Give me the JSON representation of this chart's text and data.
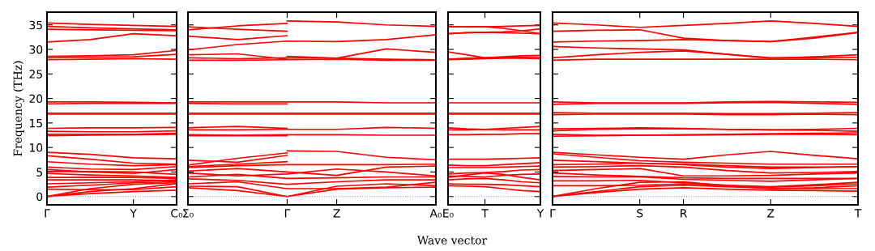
{
  "chart_data": [
    {
      "type": "line",
      "ylabel": "Frequency (THz)",
      "ylim": [
        -1.7,
        37.6
      ],
      "categories": [
        "Γ",
        null,
        "Y",
        "C₀"
      ],
      "yticks": [
        0,
        5,
        10,
        15,
        20,
        25,
        30,
        35
      ],
      "grid": false,
      "legend": false,
      "marker": "none",
      "line_style": "solid",
      "ref_lines": [
        {
          "axis": "y",
          "value": 0,
          "color": "#8888dd",
          "line_style": "dotted"
        }
      ],
      "series": [
        {
          "color": "#ff0000",
          "values": [
            35.4,
            35.1,
            34.9,
            34.7
          ]
        },
        {
          "color": "#ff0000",
          "values": [
            34.7,
            34.4,
            34.2,
            34.0
          ]
        },
        {
          "color": "#ff0000",
          "values": [
            34.1,
            34.0,
            33.9,
            33.8
          ]
        },
        {
          "color": "#ff0000",
          "values": [
            31.5,
            32.0,
            33.2,
            32.8
          ]
        },
        {
          "color": "#ff0000",
          "values": [
            28.6,
            28.7,
            28.9,
            29.8
          ]
        },
        {
          "color": "#ff0000",
          "values": [
            28.3,
            28.4,
            28.5,
            29.0
          ]
        },
        {
          "color": "#ff0000",
          "values": [
            27.9,
            28.0,
            28.1,
            28.0
          ]
        },
        {
          "color": "#ff0000",
          "values": [
            19.3,
            19.3,
            19.2,
            19.1
          ]
        },
        {
          "color": "#ff0000",
          "values": [
            18.9,
            19.0,
            19.0,
            19.0
          ]
        },
        {
          "color": "#ff0000",
          "values": [
            17.0,
            17.0,
            17.0,
            17.0
          ]
        },
        {
          "color": "#ff0000",
          "values": [
            16.8,
            16.8,
            16.8,
            16.8
          ]
        },
        {
          "color": "#ff0000",
          "values": [
            13.9,
            14.0,
            14.0,
            14.1
          ]
        },
        {
          "color": "#ff0000",
          "values": [
            13.3,
            13.2,
            13.2,
            13.4
          ]
        },
        {
          "color": "#ff0000",
          "values": [
            12.7,
            12.7,
            12.7,
            12.9
          ]
        },
        {
          "color": "#ff0000",
          "values": [
            12.4,
            12.5,
            12.6,
            12.7
          ]
        },
        {
          "color": "#ff0000",
          "values": [
            9.0,
            8.6,
            7.9,
            7.7
          ]
        },
        {
          "color": "#ff0000",
          "values": [
            8.3,
            7.6,
            6.8,
            6.6
          ]
        },
        {
          "color": "#ff0000",
          "values": [
            7.1,
            6.6,
            6.3,
            6.5
          ]
        },
        {
          "color": "#ff0000",
          "values": [
            6.0,
            5.6,
            5.5,
            6.1
          ]
        },
        {
          "color": "#ff0000",
          "values": [
            5.5,
            5.0,
            4.7,
            5.5
          ]
        },
        {
          "color": "#ff0000",
          "values": [
            5.1,
            5.1,
            5.0,
            4.5
          ]
        },
        {
          "color": "#ff0000",
          "values": [
            4.7,
            4.4,
            4.2,
            3.9
          ]
        },
        {
          "color": "#ff0000",
          "values": [
            3.9,
            3.9,
            3.9,
            3.7
          ]
        },
        {
          "color": "#ff0000",
          "values": [
            3.4,
            3.4,
            3.4,
            3.2
          ]
        },
        {
          "color": "#ff0000",
          "values": [
            2.6,
            2.8,
            3.0,
            3.4
          ]
        },
        {
          "color": "#ff0000",
          "values": [
            1.9,
            2.3,
            2.8,
            3.0
          ]
        },
        {
          "color": "#ff0000",
          "values": [
            1.5,
            1.4,
            1.4,
            2.0
          ]
        },
        {
          "color": "#ff0000",
          "values": [
            0,
            1.6,
            2.5,
            2.8
          ]
        },
        {
          "color": "#ff0000",
          "values": [
            0,
            1.0,
            1.6,
            2.6
          ]
        },
        {
          "color": "#ff0000",
          "values": [
            0,
            0.6,
            1.0,
            1.3
          ]
        }
      ]
    },
    {
      "type": "line",
      "ylim": [
        -1.7,
        37.6
      ],
      "tick_labels": "x",
      "categories": [
        "Σ₀",
        null,
        "Γ",
        "Z",
        null,
        "A₀"
      ],
      "yticks": [
        0,
        5,
        10,
        15,
        20,
        25,
        30,
        35
      ],
      "grid": false,
      "legend": false,
      "marker": "none",
      "line_style": "solid",
      "ref_lines": [
        {
          "axis": "y",
          "value": 0,
          "color": "#8888dd",
          "line_style": "dotted"
        }
      ],
      "series": [
        {
          "color": "#ff0000",
          "values": [
            34.0,
            34.8,
            35.3,
            null,
            null,
            null
          ]
        },
        {
          "color": "#ff0000",
          "values": [
            34.6,
            34.1,
            33.7,
            null,
            null,
            null
          ]
        },
        {
          "color": "#ff0000",
          "values": [
            32.7,
            32.0,
            32.8,
            null,
            null,
            null
          ]
        },
        {
          "color": "#ff0000",
          "values": [
            28.9,
            29.1,
            28.0,
            null,
            null,
            null
          ]
        },
        {
          "color": "#ff0000",
          "values": [
            19.0,
            18.9,
            18.9,
            null,
            null,
            null
          ]
        },
        {
          "color": "#ff0000",
          "values": [
            14.0,
            14.3,
            13.9,
            null,
            null,
            null
          ]
        },
        {
          "color": "#ff0000",
          "values": [
            12.4,
            12.4,
            12.4,
            null,
            null,
            null
          ]
        },
        {
          "color": "#ff0000",
          "values": [
            6.4,
            7.8,
            8.9,
            null,
            null,
            null
          ]
        },
        {
          "color": "#ff0000",
          "values": [
            7.4,
            7.0,
            8.4,
            null,
            null,
            null
          ]
        },
        {
          "color": "#ff0000",
          "values": [
            6.1,
            6.6,
            7.1,
            null,
            null,
            null
          ]
        },
        {
          "color": "#ff0000",
          "values": [
            null,
            null,
            35.8,
            35.6,
            35.0,
            34.7
          ]
        },
        {
          "color": "#ff0000",
          "values": [
            null,
            null,
            28.6,
            28.2,
            30.1,
            29.4
          ]
        },
        {
          "color": "#ff0000",
          "values": [
            null,
            null,
            9.3,
            9.2,
            8.0,
            7.5
          ]
        },
        {
          "color": "#ff0000",
          "values": [
            29.9,
            31.0,
            31.7,
            31.6,
            32.0,
            33.0
          ]
        },
        {
          "color": "#ff0000",
          "values": [
            28.3,
            28.1,
            28.3,
            28.2,
            28.0,
            27.9
          ]
        },
        {
          "color": "#ff0000",
          "values": [
            27.8,
            27.8,
            27.9,
            28.0,
            27.8,
            27.8
          ]
        },
        {
          "color": "#ff0000",
          "values": [
            19.3,
            19.3,
            19.3,
            19.3,
            19.1,
            19.1
          ]
        },
        {
          "color": "#ff0000",
          "values": [
            17.0,
            17.0,
            17.0,
            17.0,
            17.0,
            17.0
          ]
        },
        {
          "color": "#ff0000",
          "values": [
            16.8,
            16.8,
            16.8,
            16.8,
            16.8,
            16.8
          ]
        },
        {
          "color": "#ff0000",
          "values": [
            13.6,
            13.6,
            13.7,
            13.7,
            14.1,
            13.9
          ]
        },
        {
          "color": "#ff0000",
          "values": [
            12.6,
            12.5,
            12.6,
            12.6,
            12.5,
            12.5
          ]
        },
        {
          "color": "#ff0000",
          "values": [
            5.9,
            6.3,
            6.5,
            6.5,
            6.5,
            6.6
          ]
        },
        {
          "color": "#ff0000",
          "values": [
            5.2,
            5.7,
            5.0,
            4.3,
            6.0,
            6.2
          ]
        },
        {
          "color": "#ff0000",
          "values": [
            4.8,
            4.2,
            4.6,
            5.6,
            5.0,
            4.2
          ]
        },
        {
          "color": "#ff0000",
          "values": [
            4.0,
            4.5,
            3.7,
            3.8,
            4.0,
            4.0
          ]
        },
        {
          "color": "#ff0000",
          "values": [
            3.6,
            3.3,
            2.5,
            3.0,
            3.4,
            3.4
          ]
        },
        {
          "color": "#ff0000",
          "values": [
            2.6,
            3.0,
            1.6,
            1.6,
            1.9,
            2.9
          ]
        },
        {
          "color": "#ff0000",
          "values": [
            2.1,
            2.0,
            0,
            2.1,
            2.6,
            2.2
          ]
        },
        {
          "color": "#ff0000",
          "values": [
            1.8,
            1.2,
            0,
            1.5,
            1.8,
            1.9
          ]
        }
      ]
    },
    {
      "type": "line",
      "xlabel": "Wave vector",
      "ylim": [
        -1.7,
        37.6
      ],
      "tick_labels": "x",
      "categories": [
        "E₀",
        null,
        "T",
        null,
        null,
        "Y"
      ],
      "yticks": [
        0,
        5,
        10,
        15,
        20,
        25,
        30,
        35
      ],
      "grid": false,
      "legend": false,
      "marker": "none",
      "line_style": "solid",
      "ref_lines": [
        {
          "axis": "y",
          "value": 0,
          "color": "#8888dd",
          "line_style": "dotted"
        }
      ],
      "series": [
        {
          "color": "#ff0000",
          "values": [
            34.6,
            34.6,
            34.6,
            34.7,
            34.8,
            34.9
          ]
        },
        {
          "color": "#ff0000",
          "values": [
            34.6,
            34.6,
            34.6,
            34.3,
            33.8,
            33.2
          ]
        },
        {
          "color": "#ff0000",
          "values": [
            33.2,
            33.4,
            33.5,
            33.6,
            33.8,
            34.2
          ]
        },
        {
          "color": "#ff0000",
          "values": [
            33.2,
            33.4,
            33.5,
            33.4,
            33.3,
            33.2
          ]
        },
        {
          "color": "#ff0000",
          "values": [
            29.5,
            28.9,
            28.3,
            28.5,
            28.7,
            28.8
          ]
        },
        {
          "color": "#ff0000",
          "values": [
            28.0,
            28.2,
            28.3,
            28.4,
            28.4,
            28.4
          ]
        },
        {
          "color": "#ff0000",
          "values": [
            27.9,
            28.0,
            28.1,
            28.2,
            28.2,
            28.1
          ]
        },
        {
          "color": "#ff0000",
          "values": [
            19.1,
            19.1,
            19.1,
            19.1,
            19.1,
            19.1
          ]
        },
        {
          "color": "#ff0000",
          "values": [
            17.0,
            17.0,
            17.0,
            17.0,
            17.0,
            17.0
          ]
        },
        {
          "color": "#ff0000",
          "values": [
            16.8,
            16.8,
            16.8,
            16.8,
            16.8,
            16.8
          ]
        },
        {
          "color": "#ff0000",
          "values": [
            14.0,
            13.8,
            13.7,
            13.9,
            14.1,
            14.3
          ]
        },
        {
          "color": "#ff0000",
          "values": [
            13.6,
            13.6,
            13.7,
            13.6,
            13.6,
            13.6
          ]
        },
        {
          "color": "#ff0000",
          "values": [
            12.6,
            12.6,
            12.7,
            12.7,
            12.8,
            12.8
          ]
        },
        {
          "color": "#ff0000",
          "values": [
            7.6,
            7.6,
            7.6,
            7.7,
            7.8,
            7.9
          ]
        },
        {
          "color": "#ff0000",
          "values": [
            6.4,
            6.3,
            6.3,
            6.5,
            6.7,
            6.9
          ]
        },
        {
          "color": "#ff0000",
          "values": [
            5.9,
            5.9,
            5.9,
            6.0,
            6.1,
            6.2
          ]
        },
        {
          "color": "#ff0000",
          "values": [
            4.6,
            4.8,
            4.9,
            5.1,
            5.4,
            5.5
          ]
        },
        {
          "color": "#ff0000",
          "values": [
            4.2,
            4.1,
            4.0,
            4.3,
            4.5,
            4.6
          ]
        },
        {
          "color": "#ff0000",
          "values": [
            3.9,
            4.4,
            4.8,
            4.5,
            3.9,
            3.4
          ]
        },
        {
          "color": "#ff0000",
          "values": [
            3.4,
            3.6,
            3.7,
            3.4,
            3.0,
            2.8
          ]
        },
        {
          "color": "#ff0000",
          "values": [
            2.6,
            2.5,
            2.5,
            2.4,
            2.2,
            2.0
          ]
        },
        {
          "color": "#ff0000",
          "values": [
            2.2,
            2.1,
            2.0,
            1.6,
            1.2,
            1.0
          ]
        }
      ]
    },
    {
      "type": "line",
      "ylim": [
        -1.7,
        37.6
      ],
      "tick_labels": "x",
      "categories": [
        "Γ",
        null,
        "S",
        "R",
        null,
        "Z",
        null,
        "T"
      ],
      "yticks": [
        0,
        5,
        10,
        15,
        20,
        25,
        30,
        35
      ],
      "grid": false,
      "legend": false,
      "marker": "none",
      "line_style": "solid",
      "ref_lines": [
        {
          "axis": "y",
          "value": 0,
          "color": "#8888dd",
          "line_style": "dotted"
        }
      ],
      "series": [
        {
          "color": "#ff0000",
          "values": [
            35.4,
            35.0,
            34.5,
            34.9,
            35.3,
            35.8,
            35.3,
            34.7
          ]
        },
        {
          "color": "#ff0000",
          "values": [
            33.7,
            33.9,
            34.0,
            32.3,
            31.8,
            31.6,
            32.5,
            33.5
          ]
        },
        {
          "color": "#ff0000",
          "values": [
            31.5,
            31.7,
            31.8,
            32.0,
            31.8,
            31.6,
            32.3,
            33.4
          ]
        },
        {
          "color": "#ff0000",
          "values": [
            30.6,
            30.3,
            30.1,
            29.9,
            29.0,
            28.2,
            28.5,
            28.9
          ]
        },
        {
          "color": "#ff0000",
          "values": [
            28.3,
            28.9,
            29.4,
            29.7,
            29.0,
            28.3,
            28.3,
            28.4
          ]
        },
        {
          "color": "#ff0000",
          "values": [
            27.8,
            28.0,
            28.0,
            28.0,
            28.0,
            28.0,
            28.0,
            27.9
          ]
        },
        {
          "color": "#ff0000",
          "values": [
            19.3,
            19.1,
            19.1,
            19.1,
            19.3,
            19.4,
            19.3,
            19.2
          ]
        },
        {
          "color": "#ff0000",
          "values": [
            18.8,
            19.0,
            19.0,
            19.0,
            19.1,
            19.2,
            19.0,
            18.8
          ]
        },
        {
          "color": "#ff0000",
          "values": [
            17.1,
            17.0,
            17.0,
            17.0,
            16.9,
            16.9,
            17.0,
            17.1
          ]
        },
        {
          "color": "#ff0000",
          "values": [
            16.7,
            16.8,
            16.8,
            16.8,
            16.7,
            16.7,
            16.8,
            16.7
          ]
        },
        {
          "color": "#ff0000",
          "values": [
            13.8,
            13.9,
            14.0,
            13.9,
            13.7,
            13.6,
            13.7,
            13.9
          ]
        },
        {
          "color": "#ff0000",
          "values": [
            13.4,
            13.7,
            13.8,
            13.8,
            13.7,
            13.6,
            13.5,
            13.3
          ]
        },
        {
          "color": "#ff0000",
          "values": [
            12.7,
            12.5,
            12.5,
            12.6,
            12.7,
            12.8,
            12.9,
            13.0
          ]
        },
        {
          "color": "#ff0000",
          "values": [
            12.3,
            12.4,
            12.5,
            12.5,
            12.6,
            12.7,
            12.7,
            12.6
          ]
        },
        {
          "color": "#ff0000",
          "values": [
            9.0,
            8.5,
            8.0,
            7.6,
            8.5,
            9.2,
            8.4,
            7.7
          ]
        },
        {
          "color": "#ff0000",
          "values": [
            8.7,
            8.0,
            7.3,
            7.0,
            6.8,
            6.6,
            6.6,
            6.6
          ]
        },
        {
          "color": "#ff0000",
          "values": [
            7.4,
            7.1,
            6.8,
            6.6,
            6.3,
            6.0,
            6.0,
            6.1
          ]
        },
        {
          "color": "#ff0000",
          "values": [
            6.5,
            6.6,
            6.8,
            6.5,
            6.0,
            5.7,
            5.9,
            6.1
          ]
        },
        {
          "color": "#ff0000",
          "values": [
            6.0,
            6.1,
            6.3,
            6.0,
            5.3,
            4.8,
            4.9,
            5.1
          ]
        },
        {
          "color": "#ff0000",
          "values": [
            5.3,
            5.5,
            5.7,
            4.2,
            4.2,
            4.3,
            4.6,
            4.8
          ]
        },
        {
          "color": "#ff0000",
          "values": [
            4.8,
            4.4,
            4.1,
            3.8,
            3.7,
            3.7,
            3.7,
            3.7
          ]
        },
        {
          "color": "#ff0000",
          "values": [
            4.1,
            4.0,
            4.0,
            3.5,
            3.3,
            3.1,
            3.4,
            3.7
          ]
        },
        {
          "color": "#ff0000",
          "values": [
            3.2,
            3.2,
            3.3,
            2.8,
            2.3,
            2.0,
            2.4,
            2.9
          ]
        },
        {
          "color": "#ff0000",
          "values": [
            2.2,
            2.2,
            2.3,
            2.6,
            2.2,
            1.9,
            2.2,
            2.6
          ]
        },
        {
          "color": "#ff0000",
          "values": [
            0,
            1.6,
            2.9,
            3.0,
            2.2,
            1.6,
            1.8,
            2.2
          ]
        },
        {
          "color": "#ff0000",
          "values": [
            0,
            1.0,
            2.0,
            2.3,
            2.0,
            1.7,
            1.6,
            1.6
          ]
        },
        {
          "color": "#ff0000",
          "values": [
            0,
            0.8,
            1.5,
            1.8,
            1.5,
            1.3,
            1.2,
            1.1
          ]
        }
      ]
    }
  ]
}
